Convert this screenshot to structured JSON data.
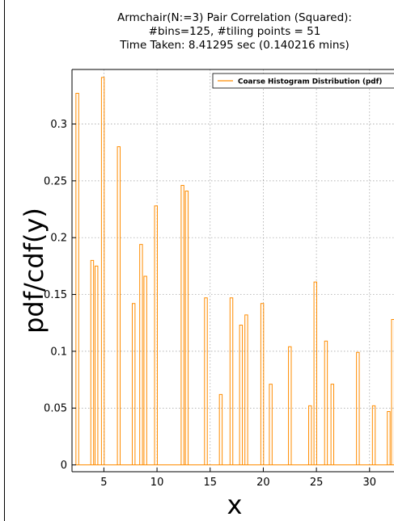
{
  "chart_data": {
    "type": "bar",
    "title_lines": [
      "Armchair(N:=3) Pair Correlation (Squared):",
      "#bins=125, #tiling points = 51",
      "Time Taken: 8.41295 sec (0.140216 mins)"
    ],
    "xlabel": "x",
    "ylabel": "pdf/cdf(y)",
    "xlim": [
      2.0,
      32.3
    ],
    "ylim": [
      -0.006,
      0.348
    ],
    "x_ticks": [
      5,
      10,
      15,
      20,
      25,
      30
    ],
    "x_tick_labels": [
      "5",
      "10",
      "15",
      "20",
      "25",
      "30"
    ],
    "y_ticks": [
      0,
      0.05,
      0.1,
      0.15,
      0.2,
      0.25,
      0.3
    ],
    "y_tick_labels": [
      "0",
      "0.05",
      "0.1",
      "0.15",
      "0.2",
      "0.25",
      "0.3"
    ],
    "grid": true,
    "legend": {
      "placement": "top-right",
      "entries": [
        "Coarse Histogram Distribution (pdf)"
      ]
    },
    "series": [
      {
        "name": "Coarse Histogram Distribution (pdf)",
        "color": "#ff8c00",
        "bin_width": 0.26,
        "bins": [
          {
            "x": 2.5,
            "y": 0.327
          },
          {
            "x": 3.9,
            "y": 0.18
          },
          {
            "x": 4.3,
            "y": 0.175
          },
          {
            "x": 4.9,
            "y": 0.341
          },
          {
            "x": 6.4,
            "y": 0.28
          },
          {
            "x": 7.8,
            "y": 0.142
          },
          {
            "x": 8.5,
            "y": 0.194
          },
          {
            "x": 8.9,
            "y": 0.166
          },
          {
            "x": 9.9,
            "y": 0.228
          },
          {
            "x": 12.4,
            "y": 0.246
          },
          {
            "x": 12.8,
            "y": 0.241
          },
          {
            "x": 14.6,
            "y": 0.147
          },
          {
            "x": 16.0,
            "y": 0.062
          },
          {
            "x": 17.0,
            "y": 0.147
          },
          {
            "x": 17.9,
            "y": 0.123
          },
          {
            "x": 18.4,
            "y": 0.132
          },
          {
            "x": 19.9,
            "y": 0.142
          },
          {
            "x": 20.7,
            "y": 0.071
          },
          {
            "x": 22.5,
            "y": 0.104
          },
          {
            "x": 24.4,
            "y": 0.052
          },
          {
            "x": 24.9,
            "y": 0.161
          },
          {
            "x": 25.9,
            "y": 0.109
          },
          {
            "x": 26.5,
            "y": 0.071
          },
          {
            "x": 28.9,
            "y": 0.099
          },
          {
            "x": 30.4,
            "y": 0.052
          },
          {
            "x": 31.8,
            "y": 0.047
          },
          {
            "x": 32.2,
            "y": 0.128
          }
        ]
      }
    ]
  }
}
